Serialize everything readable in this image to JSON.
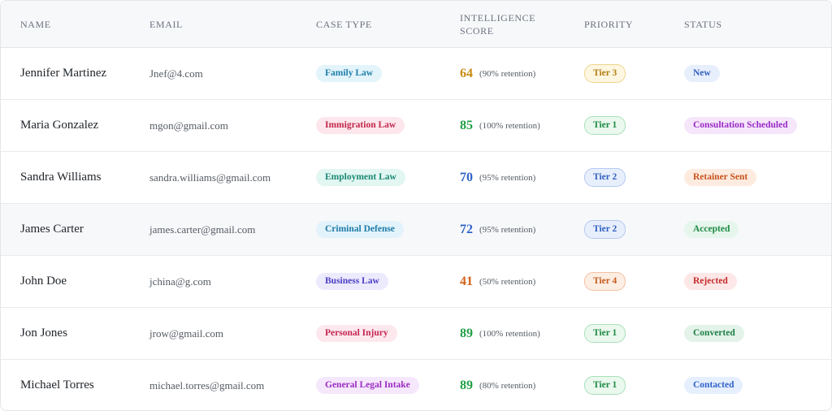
{
  "table": {
    "columns": [
      {
        "label": "NAME"
      },
      {
        "label": "EMAIL"
      },
      {
        "label": "CASE TYPE"
      },
      {
        "label": "INTELLIGENCE SCORE"
      },
      {
        "label": "PRIORITY"
      },
      {
        "label": "STATUS"
      }
    ],
    "rows": [
      {
        "name": "Jennifer Martinez",
        "email": "Jnef@4.com",
        "case_type": "Family Law",
        "score": "64",
        "retention": "(90% retention)",
        "priority": "Tier 3",
        "status": "New"
      },
      {
        "name": "Maria Gonzalez",
        "email": "mgon@gmail.com",
        "case_type": "Immigration Law",
        "score": "85",
        "retention": "(100% retention)",
        "priority": "Tier 1",
        "status": "Consultation Scheduled"
      },
      {
        "name": "Sandra Williams",
        "email": "sandra.williams@gmail.com",
        "case_type": "Employment Law",
        "score": "70",
        "retention": "(95% retention)",
        "priority": "Tier 2",
        "status": "Retainer Sent"
      },
      {
        "name": "James Carter",
        "email": "james.carter@gmail.com",
        "case_type": "Criminal Defense",
        "score": "72",
        "retention": "(95% retention)",
        "priority": "Tier 2",
        "status": "Accepted"
      },
      {
        "name": "John Doe",
        "email": "jchina@g.com",
        "case_type": "Business Law",
        "score": "41",
        "retention": "(50% retention)",
        "priority": "Tier 4",
        "status": "Rejected"
      },
      {
        "name": "Jon Jones",
        "email": "jrow@gmail.com",
        "case_type": "Personal Injury",
        "score": "89",
        "retention": "(100% retention)",
        "priority": "Tier 1",
        "status": "Converted"
      },
      {
        "name": "Michael Torres",
        "email": "michael.torres@gmail.com",
        "case_type": "General Legal Intake",
        "score": "89",
        "retention": "(80% retention)",
        "priority": "Tier 1",
        "status": "Contacted"
      }
    ]
  },
  "colors": {
    "case_type": {
      "Family Law": {
        "bg": "#e3f4fb",
        "fg": "#1f7fa8"
      },
      "Immigration Law": {
        "bg": "#fde7ec",
        "fg": "#c2264b"
      },
      "Employment Law": {
        "bg": "#e2f6f2",
        "fg": "#1b8a74"
      },
      "Criminal Defense": {
        "bg": "#e3f3fb",
        "fg": "#1d7aa6"
      },
      "Business Law": {
        "bg": "#eceafd",
        "fg": "#4b3fc4"
      },
      "Personal Injury": {
        "bg": "#fde8ee",
        "fg": "#c42550"
      },
      "General Legal Intake": {
        "bg": "#f6e8fc",
        "fg": "#9b2bc2"
      }
    },
    "score": {
      "64": "#c98a12",
      "85": "#22a046",
      "70": "#2f62c8",
      "72": "#2f62c8",
      "41": "#d4611b",
      "89": "#22a046"
    },
    "priority": {
      "Tier 1": {
        "bg": "#eaf8ee",
        "fg": "#1f8a44",
        "border": "#a9e0b9"
      },
      "Tier 2": {
        "bg": "#e8effc",
        "fg": "#2f5fc0",
        "border": "#b4c8f0"
      },
      "Tier 3": {
        "bg": "#fdf6e1",
        "fg": "#b27d10",
        "border": "#efd58f"
      },
      "Tier 4": {
        "bg": "#fdeee4",
        "fg": "#c65a1c",
        "border": "#f2c1a2"
      }
    },
    "status": {
      "New": {
        "bg": "#e8effc",
        "fg": "#2f5fc0"
      },
      "Consultation Scheduled": {
        "bg": "#f5e6fc",
        "fg": "#9a2ac4"
      },
      "Retainer Sent": {
        "bg": "#fdebe0",
        "fg": "#c6531b"
      },
      "Accepted": {
        "bg": "#e6f6ec",
        "fg": "#1f8a44"
      },
      "Rejected": {
        "bg": "#fde7e7",
        "fg": "#c42a2a"
      },
      "Converted": {
        "bg": "#e3f3ea",
        "fg": "#1e7f45"
      },
      "Contacted": {
        "bg": "#e6effd",
        "fg": "#2f62c8"
      }
    }
  }
}
